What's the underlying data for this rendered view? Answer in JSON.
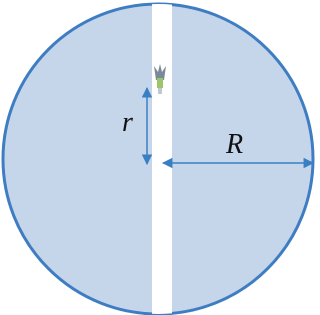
{
  "labels": {
    "small_radius": "r",
    "large_radius": "R"
  }
}
